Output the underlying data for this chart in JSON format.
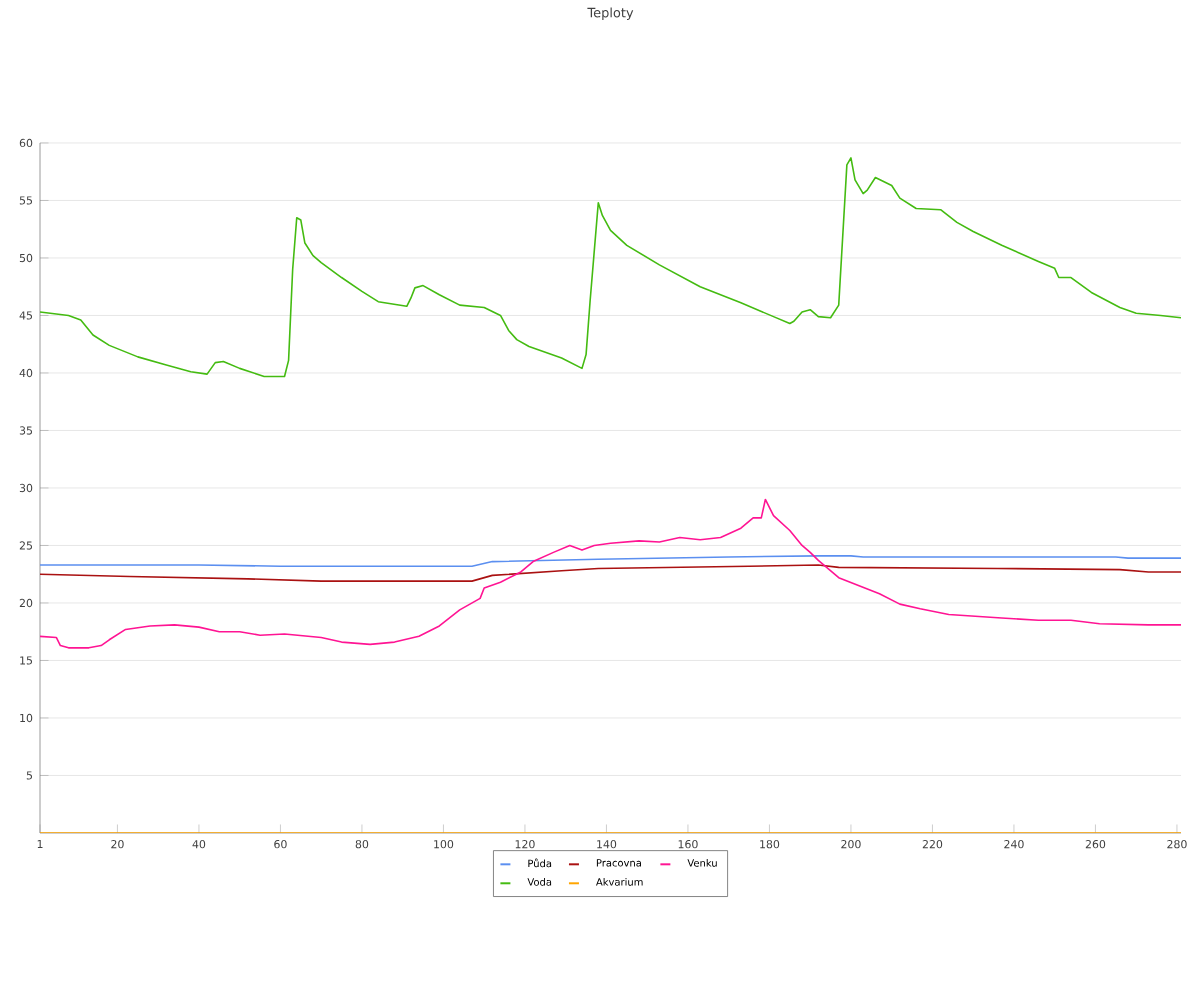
{
  "chart_data": {
    "type": "line",
    "title": "Teploty",
    "xlim": [
      1,
      281
    ],
    "ylim": [
      0,
      60
    ],
    "yticks": [
      5,
      10,
      15,
      20,
      25,
      30,
      35,
      40,
      45,
      50,
      55,
      60
    ],
    "xticks": [
      1,
      20,
      40,
      60,
      80,
      100,
      120,
      140,
      160,
      180,
      200,
      220,
      240,
      260,
      280
    ],
    "grid": "y",
    "legend": "bottom",
    "marker": "none",
    "line_style": "solid",
    "series": [
      {
        "name": "Půda",
        "color": "#5b8ff0",
        "x": [
          1,
          40,
          60,
          80,
          107,
          112,
          138,
          170,
          192,
          200,
          203,
          265,
          268,
          281
        ],
        "values": [
          23.3,
          23.3,
          23.2,
          23.2,
          23.2,
          23.6,
          23.8,
          24.0,
          24.1,
          24.1,
          24.0,
          24.0,
          23.9,
          23.9
        ]
      },
      {
        "name": "Voda",
        "color": "#44bb11",
        "x": [
          1,
          8,
          11,
          14,
          18,
          25,
          32,
          38,
          42,
          44,
          46,
          50,
          56,
          61,
          62,
          63,
          64,
          65,
          66,
          68,
          70,
          75,
          80,
          84,
          91,
          92,
          93,
          95,
          99,
          104,
          110,
          114,
          116,
          118,
          121,
          129,
          134,
          135,
          136,
          138,
          139,
          141,
          145,
          153,
          163,
          173,
          181,
          185,
          186,
          188,
          190,
          192,
          195,
          197,
          199,
          200,
          201,
          203,
          204,
          206,
          210,
          212,
          216,
          222,
          226,
          230,
          237,
          246,
          250,
          251,
          254,
          259,
          266,
          270,
          276,
          281
        ],
        "values": [
          45.3,
          45.0,
          44.6,
          43.3,
          42.4,
          41.4,
          40.7,
          40.1,
          39.9,
          40.9,
          41.0,
          40.4,
          39.7,
          39.7,
          41.1,
          49.0,
          53.5,
          53.3,
          51.3,
          50.2,
          49.6,
          48.3,
          47.1,
          46.2,
          45.8,
          46.5,
          47.4,
          47.6,
          46.8,
          45.9,
          45.7,
          45.0,
          43.7,
          42.9,
          42.3,
          41.3,
          40.4,
          41.6,
          46.3,
          54.8,
          53.7,
          52.4,
          51.1,
          49.4,
          47.5,
          46.1,
          44.9,
          44.3,
          44.5,
          45.3,
          45.5,
          44.9,
          44.8,
          45.9,
          58.1,
          58.7,
          56.8,
          55.6,
          55.9,
          57.0,
          56.3,
          55.2,
          54.3,
          54.2,
          53.1,
          52.3,
          51.1,
          49.7,
          49.1,
          48.3,
          48.3,
          47.0,
          45.7,
          45.2,
          45.0,
          44.8
        ]
      },
      {
        "name": "Pracovna",
        "color": "#aa1111",
        "x": [
          1,
          23,
          52,
          70,
          107,
          112,
          129,
          138,
          175,
          192,
          197,
          236,
          266,
          273,
          281
        ],
        "values": [
          22.5,
          22.3,
          22.1,
          21.9,
          21.9,
          22.4,
          22.8,
          23.0,
          23.2,
          23.3,
          23.1,
          23.0,
          22.9,
          22.7,
          22.7
        ]
      },
      {
        "name": "Akvarium",
        "color": "#ffa500",
        "x": [
          1,
          281
        ],
        "values": [
          0,
          0
        ]
      },
      {
        "name": "Venku",
        "color": "#ff1493",
        "x": [
          1,
          5,
          6,
          8,
          13,
          16,
          18,
          22,
          28,
          34,
          40,
          45,
          50,
          55,
          61,
          70,
          75,
          82,
          88,
          94,
          99,
          104,
          109,
          110,
          114,
          119,
          122,
          127,
          131,
          134,
          137,
          141,
          148,
          153,
          158,
          163,
          168,
          173,
          176,
          178,
          179,
          181,
          185,
          188,
          190,
          192,
          197,
          202,
          207,
          212,
          217,
          224,
          237,
          246,
          254,
          261,
          273,
          281
        ],
        "values": [
          17.1,
          17.0,
          16.3,
          16.1,
          16.1,
          16.3,
          16.8,
          17.7,
          18.0,
          18.1,
          17.9,
          17.5,
          17.5,
          17.2,
          17.3,
          17.0,
          16.6,
          16.4,
          16.6,
          17.1,
          18.0,
          19.4,
          20.4,
          21.3,
          21.8,
          22.7,
          23.6,
          24.4,
          25.0,
          24.6,
          25.0,
          25.2,
          25.4,
          25.3,
          25.7,
          25.5,
          25.7,
          26.5,
          27.4,
          27.4,
          29.0,
          27.6,
          26.3,
          25.0,
          24.4,
          23.7,
          22.2,
          21.5,
          20.8,
          19.9,
          19.5,
          19.0,
          18.7,
          18.5,
          18.5,
          18.2,
          18.1,
          18.1
        ]
      }
    ]
  }
}
